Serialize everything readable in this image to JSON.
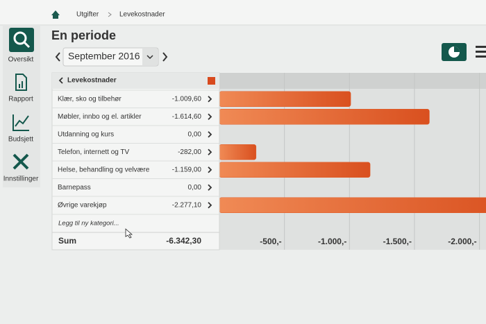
{
  "breadcrumb": [
    "Utgifter",
    "Levekostnader"
  ],
  "title": "En periode",
  "period": "September 2016",
  "sidebar": [
    "Oversikt",
    "Rapport",
    "Budsjett",
    "Innstillinger"
  ],
  "table": {
    "header": "Levekostnader",
    "add": "Legg til ny kategori...",
    "sum_label": "Sum",
    "sum": "-6.342,30"
  },
  "chart_data": {
    "type": "bar",
    "orientation": "horizontal",
    "categories": [
      "Klær, sko og tilbehør",
      "Møbler, innbo og el. artikler",
      "Utdanning og kurs",
      "Telefon, internett og TV",
      "Helse, behandling og velvære",
      "Barnepass",
      "Øvrige varekjøp"
    ],
    "values": [
      -1009.6,
      -1614.6,
      0,
      -282,
      -1159,
      0,
      -2277.1
    ],
    "value_labels": [
      "-1.009,60",
      "-1.614,60",
      "0,00",
      "-282,00",
      "-1.159,00",
      "0,00",
      "-2.277,10"
    ],
    "color": "#e05a26",
    "xlim": [
      0,
      -2050
    ],
    "xticks": [
      {
        "value": -500,
        "label": "-500,-"
      },
      {
        "value": -1000,
        "label": "-1.000,-"
      },
      {
        "value": -1500,
        "label": "-1.500,-"
      },
      {
        "value": -2000,
        "label": "-2.000,-"
      }
    ],
    "grid": true
  }
}
